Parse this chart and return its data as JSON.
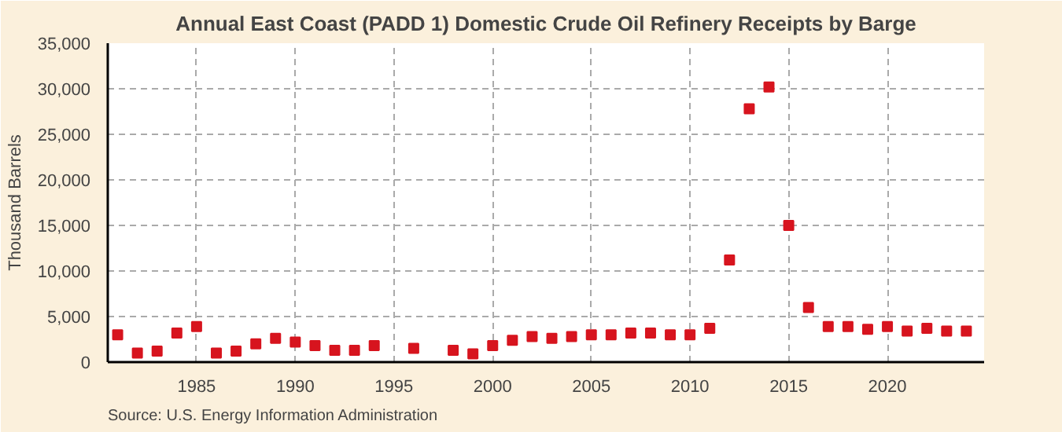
{
  "chart_data": {
    "type": "scatter",
    "title": "Annual East Coast (PADD 1) Domestic Crude Oil Refinery Receipts by Barge",
    "ylabel": "Thousand Barrels",
    "x": [
      1981,
      1982,
      1983,
      1984,
      1985,
      1986,
      1987,
      1988,
      1989,
      1990,
      1991,
      1992,
      1993,
      1994,
      1996,
      1998,
      1999,
      2000,
      2001,
      2002,
      2003,
      2004,
      2005,
      2006,
      2007,
      2008,
      2009,
      2010,
      2011,
      2012,
      2013,
      2014,
      2015,
      2016,
      2017,
      2018,
      2019,
      2020,
      2021,
      2022,
      2023,
      2024
    ],
    "series": [
      {
        "color": "#d7141e",
        "values": [
          3000,
          1000,
          1200,
          3200,
          3900,
          1000,
          1200,
          2000,
          2600,
          2200,
          1800,
          1300,
          1300,
          1800,
          1500,
          1300,
          900,
          1800,
          2400,
          2800,
          2600,
          2800,
          3000,
          3000,
          3200,
          3200,
          3000,
          3000,
          3700,
          11200,
          27800,
          30200,
          15000,
          6000,
          3900,
          3900,
          3600,
          3900,
          3400,
          3700,
          3400,
          3400
        ]
      }
    ],
    "xlim": [
      1980.5,
      2024.9
    ],
    "xticks": [
      1985,
      1990,
      1995,
      2000,
      2005,
      2010,
      2015,
      2020
    ],
    "ylim": [
      0,
      35000
    ],
    "yticks": [
      {
        "value": 0,
        "label": "0"
      },
      {
        "value": 5000,
        "label": "5,000"
      },
      {
        "value": 10000,
        "label": "10,000"
      },
      {
        "value": 15000,
        "label": "15,000"
      },
      {
        "value": 20000,
        "label": "20,000"
      },
      {
        "value": 25000,
        "label": "25,000"
      },
      {
        "value": 30000,
        "label": "30,000"
      },
      {
        "value": 35000,
        "label": "35,000"
      }
    ],
    "grid": true,
    "marker": "square",
    "annotations": [
      "Source: U.S. Energy Information Administration"
    ]
  }
}
